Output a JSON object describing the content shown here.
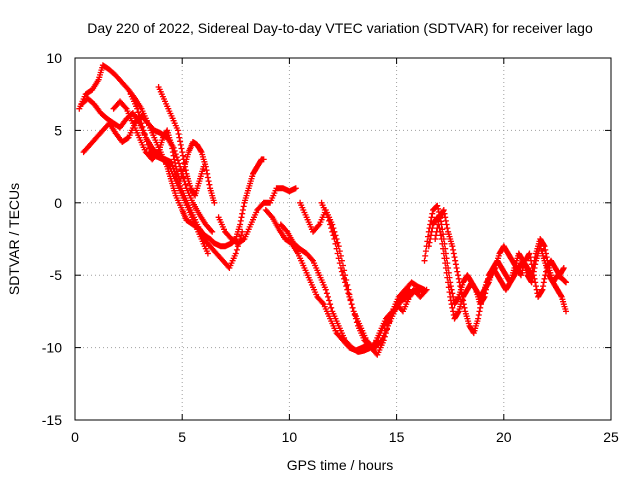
{
  "chart_data": {
    "type": "scatter",
    "title": "Day 220 of 2022, Sidereal Day-to-day VTEC variation (SDTVAR) for receiver lago",
    "xlabel": "GPS time / hours",
    "ylabel": "SDTVAR / TECUs",
    "xlim": [
      0,
      25
    ],
    "ylim": [
      -15,
      10
    ],
    "xticks": [
      "0",
      "5",
      "10",
      "15",
      "20",
      "25"
    ],
    "xtick_values": [
      0,
      5,
      10,
      15,
      20,
      25
    ],
    "yticks": [
      "10",
      "5",
      "0",
      "-5",
      "-10",
      "-15"
    ],
    "ytick_values": [
      10,
      5,
      0,
      -5,
      -10,
      -15
    ],
    "grid": true,
    "marker": "+",
    "series": [
      {
        "name": "SDTVAR",
        "color": "#ff0000",
        "tracks": [
          {
            "x": [
              0.2,
              0.5,
              0.8,
              1.1,
              1.3,
              1.6,
              1.9,
              2.2,
              2.5,
              2.8,
              3.1,
              3.4,
              3.7,
              4.0,
              4.3,
              4.5,
              4.7,
              5.0,
              5.2,
              5.5,
              5.8,
              6.0,
              6.3,
              6.5,
              6.8,
              7.0,
              7.3,
              7.5,
              7.7,
              7.9,
              8.1,
              8.3,
              8.5,
              8.7,
              8.8
            ],
            "y": [
              6.5,
              7.5,
              7.8,
              8.5,
              9.5,
              9.2,
              8.8,
              8.3,
              7.8,
              7.2,
              6.5,
              5.5,
              4.5,
              3.5,
              2.5,
              1.5,
              0.5,
              -0.5,
              -1.2,
              -1.5,
              -1.8,
              -2.2,
              -2.5,
              -2.8,
              -3.0,
              -3.0,
              -2.8,
              -2.5,
              -1.5,
              0.0,
              1.0,
              2.0,
              2.5,
              3.0,
              3.0
            ]
          },
          {
            "x": [
              0.3,
              0.6,
              0.9,
              1.2,
              1.5,
              1.8,
              2.1,
              2.4,
              2.7,
              3.0,
              3.3,
              3.6,
              3.9,
              4.2,
              4.5,
              4.8,
              5.1,
              5.4,
              5.7,
              6.0,
              6.3,
              6.6,
              6.9,
              7.2,
              7.5,
              7.8
            ],
            "y": [
              6.8,
              7.2,
              6.8,
              6.2,
              5.8,
              5.5,
              5.2,
              5.8,
              6.2,
              5.5,
              4.5,
              3.8,
              3.2,
              3.0,
              2.8,
              1.5,
              0.5,
              -0.5,
              -1.5,
              -2.5,
              -3.0,
              -3.5,
              -4.0,
              -4.5,
              -3.5,
              -2.0
            ]
          },
          {
            "x": [
              0.4,
              0.7,
              1.0,
              1.3,
              1.6,
              1.9,
              2.2,
              2.5,
              2.8,
              3.1,
              3.4,
              3.7,
              4.0,
              4.3,
              4.6,
              4.9,
              5.2,
              5.5,
              5.8,
              6.1,
              6.4
            ],
            "y": [
              3.5,
              4.0,
              4.5,
              5.0,
              5.5,
              4.8,
              4.2,
              4.5,
              5.5,
              6.0,
              5.5,
              5.0,
              4.8,
              4.5,
              3.8,
              2.5,
              1.0,
              0.0,
              -0.8,
              -1.5,
              -2.0
            ]
          },
          {
            "x": [
              1.8,
              2.1,
              2.4,
              2.7,
              3.0,
              3.3,
              3.6,
              3.9,
              4.1,
              4.3,
              4.5,
              4.7,
              4.9,
              5.1,
              5.3,
              5.5,
              5.7,
              5.9,
              6.1,
              6.3,
              6.5
            ],
            "y": [
              6.5,
              7.0,
              6.5,
              5.5,
              4.5,
              3.5,
              3.0,
              3.5,
              4.5,
              5.0,
              4.0,
              2.5,
              1.5,
              2.5,
              3.5,
              4.2,
              4.0,
              3.5,
              2.5,
              1.0,
              0.0
            ]
          },
          {
            "x": [
              2.6,
              2.9,
              3.2,
              3.5,
              3.8,
              4.1,
              4.4,
              4.7,
              5.0,
              5.3,
              5.6,
              5.9,
              6.2
            ],
            "y": [
              7.5,
              6.5,
              5.0,
              3.5,
              3.2,
              3.0,
              2.5,
              1.5,
              0.5,
              -0.5,
              -1.5,
              -2.5,
              -3.5
            ]
          },
          {
            "x": [
              3.9,
              4.2,
              4.5,
              4.8,
              5.0,
              5.2,
              5.4,
              5.6,
              5.8,
              6.0
            ],
            "y": [
              8.0,
              7.0,
              6.0,
              5.0,
              3.5,
              2.0,
              1.0,
              0.5,
              1.5,
              2.5
            ]
          },
          {
            "x": [
              6.7,
              7.0,
              7.3,
              7.6,
              7.9,
              8.2,
              8.5,
              8.8,
              9.1,
              9.4,
              9.7,
              10.0,
              10.3
            ],
            "y": [
              -1.0,
              -2.0,
              -2.5,
              -2.8,
              -2.5,
              -1.5,
              -0.5,
              0.0,
              0.0,
              1.0,
              1.0,
              0.8,
              1.0
            ]
          },
          {
            "x": [
              8.9,
              9.2,
              9.5,
              9.8,
              10.1,
              10.4,
              10.7,
              11.0,
              11.3,
              11.6,
              11.9,
              12.2,
              12.5,
              12.8,
              13.1,
              13.4,
              13.7,
              14.0,
              14.3,
              14.6,
              14.9,
              15.2,
              15.5,
              15.8,
              16.1,
              16.4
            ],
            "y": [
              -0.5,
              -1.0,
              -1.8,
              -2.5,
              -2.8,
              -3.5,
              -4.5,
              -5.5,
              -6.5,
              -7.0,
              -8.0,
              -9.0,
              -9.5,
              -10.0,
              -10.2,
              -10.0,
              -9.8,
              -10.0,
              -9.5,
              -8.5,
              -7.5,
              -6.8,
              -6.5,
              -6.0,
              -6.5,
              -6.0
            ]
          },
          {
            "x": [
              9.6,
              9.9,
              10.2,
              10.5,
              10.8,
              11.1,
              11.4,
              11.7,
              12.0,
              12.3,
              12.6,
              12.9,
              13.2,
              13.5,
              13.8,
              14.1,
              14.4,
              14.7,
              15.0,
              15.3,
              15.6
            ],
            "y": [
              -1.5,
              -2.0,
              -2.8,
              -3.2,
              -3.5,
              -4.0,
              -5.0,
              -6.0,
              -7.5,
              -8.5,
              -9.5,
              -10.0,
              -10.3,
              -10.2,
              -10.0,
              -9.5,
              -8.5,
              -8.0,
              -7.0,
              -6.5,
              -6.0
            ]
          },
          {
            "x": [
              10.5,
              10.8,
              11.1,
              11.4,
              11.7,
              12.0,
              12.3,
              12.6,
              12.9,
              13.2,
              13.5,
              13.8,
              14.1,
              14.4,
              14.7,
              15.0,
              15.3,
              15.6,
              15.9,
              16.2
            ],
            "y": [
              0.0,
              -1.0,
              -2.0,
              -1.5,
              -0.5,
              -1.5,
              -3.0,
              -5.0,
              -7.0,
              -8.5,
              -9.5,
              -10.0,
              -10.5,
              -9.5,
              -8.0,
              -7.0,
              -7.5,
              -6.5,
              -6.0,
              -6.0
            ]
          },
          {
            "x": [
              11.5,
              11.8,
              12.1,
              12.4,
              12.7,
              13.0,
              13.3,
              13.6,
              13.9,
              14.2,
              14.5,
              14.8,
              15.1,
              15.4,
              15.7,
              16.0,
              16.3
            ],
            "y": [
              0.0,
              -1.0,
              -2.5,
              -4.5,
              -6.0,
              -7.5,
              -8.5,
              -9.5,
              -10.0,
              -9.0,
              -8.0,
              -7.5,
              -6.5,
              -6.0,
              -5.5,
              -5.8,
              -6.0
            ]
          },
          {
            "x": [
              16.3,
              16.5,
              16.7,
              16.9,
              17.1,
              17.3,
              17.5,
              17.7,
              17.9,
              18.1,
              18.3,
              18.5,
              18.7,
              18.9,
              19.1,
              19.3,
              19.5,
              19.7,
              19.9,
              20.1,
              20.3,
              20.5,
              20.7,
              20.9,
              21.1,
              21.3,
              21.5,
              21.7,
              21.9,
              22.1,
              22.3,
              22.5,
              22.7,
              22.9
            ],
            "y": [
              -4.0,
              -2.0,
              -0.5,
              -0.2,
              -1.5,
              -3.5,
              -5.5,
              -7.0,
              -6.5,
              -5.5,
              -5.0,
              -5.5,
              -6.0,
              -6.5,
              -6.0,
              -5.5,
              -4.5,
              -4.0,
              -4.5,
              -5.0,
              -5.5,
              -5.0,
              -4.5,
              -4.0,
              -4.5,
              -5.0,
              -3.5,
              -2.5,
              -3.0,
              -4.5,
              -5.5,
              -6.0,
              -6.5,
              -7.5
            ]
          },
          {
            "x": [
              16.5,
              16.7,
              16.9,
              17.1,
              17.3,
              17.5,
              17.7,
              17.9,
              18.1,
              18.3,
              18.5,
              18.7,
              18.9,
              19.1,
              19.3,
              19.5,
              19.7,
              19.9,
              20.1,
              20.3,
              20.5,
              20.7,
              20.9,
              21.1,
              21.3,
              21.5,
              21.7,
              21.9,
              22.1,
              22.3,
              22.5,
              22.7,
              22.9
            ],
            "y": [
              -3.0,
              -1.5,
              -1.0,
              -2.5,
              -4.5,
              -6.5,
              -8.0,
              -7.5,
              -6.5,
              -6.0,
              -5.5,
              -6.0,
              -7.0,
              -6.5,
              -5.0,
              -4.5,
              -5.0,
              -5.5,
              -6.0,
              -5.5,
              -4.5,
              -3.5,
              -4.0,
              -5.0,
              -5.5,
              -4.0,
              -3.0,
              -4.0,
              -5.0,
              -5.5,
              -5.0,
              -5.2,
              -5.5
            ]
          },
          {
            "x": [
              16.8,
              17.0,
              17.2,
              17.4,
              17.6,
              17.8,
              18.0,
              18.2,
              18.4,
              18.6,
              18.8,
              19.0,
              19.2,
              19.4,
              19.6,
              19.8,
              20.0,
              20.2,
              20.4,
              20.6,
              20.8,
              21.0,
              21.2,
              21.4,
              21.6,
              21.8,
              22.0,
              22.2,
              22.4,
              22.6,
              22.8
            ],
            "y": [
              -2.5,
              -1.0,
              -0.5,
              -2.0,
              -3.0,
              -4.5,
              -6.0,
              -7.5,
              -8.5,
              -9.0,
              -8.0,
              -6.5,
              -5.5,
              -5.0,
              -4.5,
              -3.5,
              -3.0,
              -3.5,
              -4.0,
              -4.5,
              -5.0,
              -4.0,
              -3.5,
              -5.0,
              -6.5,
              -6.0,
              -4.5,
              -4.0,
              -4.5,
              -5.0,
              -4.5
            ]
          }
        ]
      }
    ]
  }
}
